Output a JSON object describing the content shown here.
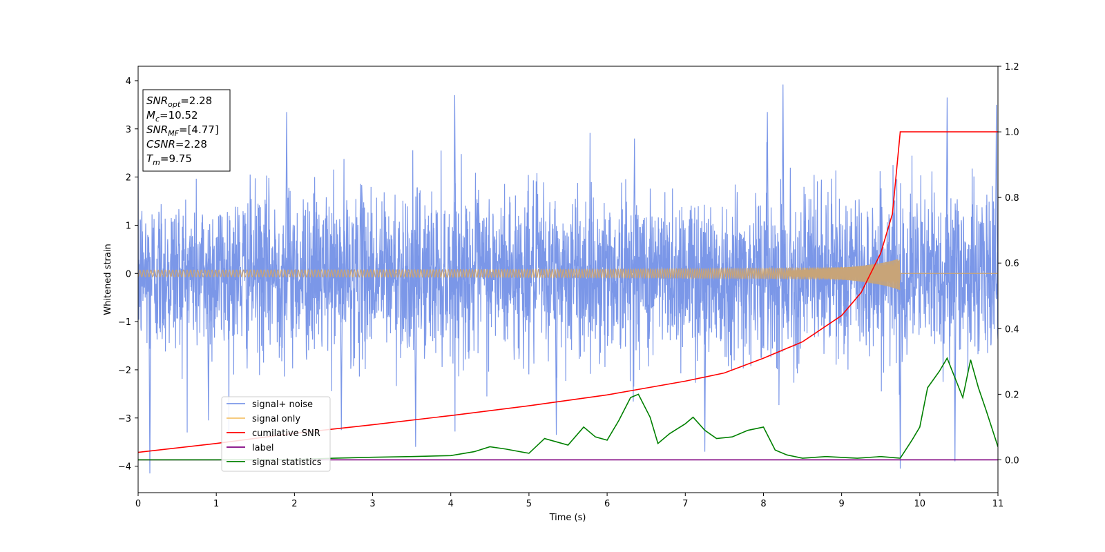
{
  "chart_data": {
    "type": "line",
    "xlabel": "Time (s)",
    "ylabel": "Whitened strain",
    "xlim": [
      0,
      11
    ],
    "ylim": [
      -4.55,
      4.3
    ],
    "y2lim": [
      -0.1,
      1.2
    ],
    "xticks": [
      "0",
      "1",
      "2",
      "3",
      "4",
      "5",
      "6",
      "7",
      "8",
      "9",
      "10",
      "11"
    ],
    "yticks": [
      "4",
      "3",
      "2",
      "1",
      "0",
      "−1",
      "−2",
      "−3",
      "−4"
    ],
    "y2ticks": [
      "1.2",
      "1.0",
      "0.8",
      "0.6",
      "0.4",
      "0.2",
      "0.0"
    ],
    "grid": false,
    "legend_position": "lower-left",
    "series": [
      {
        "name": "signal+ noise",
        "axis": "left",
        "color": "#7b97e8",
        "style": "dense noise",
        "typical_range": [
          -1.6,
          1.6
        ],
        "spike_peaks": [
          [
            0.15,
            -4.15
          ],
          [
            0.9,
            -3.05
          ],
          [
            1.9,
            3.35
          ],
          [
            2.6,
            -3.25
          ],
          [
            3.55,
            -3.6
          ],
          [
            4.05,
            3.7
          ],
          [
            5.35,
            -3.35
          ],
          [
            6.35,
            2.8
          ],
          [
            7.25,
            -3.7
          ],
          [
            8.05,
            3.35
          ],
          [
            8.25,
            3.92
          ],
          [
            9.75,
            -4.05
          ],
          [
            10.35,
            3.65
          ],
          [
            10.45,
            -3.9
          ],
          [
            10.98,
            3.5
          ]
        ]
      },
      {
        "name": "signal only",
        "axis": "left",
        "color": "#f5c26b",
        "style": "chirp",
        "merger_time": 9.75,
        "peak_amplitude": 0.33
      },
      {
        "name": "cumilative SNR",
        "axis": "right",
        "color": "#ff0000",
        "x": [
          0,
          1,
          2,
          3,
          4,
          5,
          6,
          7,
          7.5,
          8,
          8.5,
          9,
          9.25,
          9.5,
          9.65,
          9.75,
          11
        ],
        "values": [
          0.023,
          0.05,
          0.081,
          0.107,
          0.135,
          0.165,
          0.198,
          0.24,
          0.265,
          0.31,
          0.36,
          0.44,
          0.51,
          0.63,
          0.75,
          1.0,
          1.0
        ]
      },
      {
        "name": "label",
        "axis": "right",
        "color": "#800080",
        "x": [
          0,
          11
        ],
        "values": [
          0.0,
          0.0
        ]
      },
      {
        "name": "signal statistics",
        "axis": "right",
        "color": "#008000",
        "x": [
          0,
          1,
          2,
          2.5,
          3,
          3.5,
          4,
          4.3,
          4.5,
          4.7,
          5,
          5.2,
          5.5,
          5.7,
          5.85,
          6.0,
          6.15,
          6.3,
          6.4,
          6.55,
          6.65,
          6.8,
          7.0,
          7.1,
          7.25,
          7.4,
          7.6,
          7.8,
          8.0,
          8.15,
          8.3,
          8.5,
          8.8,
          9.2,
          9.5,
          9.75,
          9.9,
          10.0,
          10.1,
          10.25,
          10.35,
          10.45,
          10.55,
          10.65,
          10.75,
          10.85,
          11
        ],
        "values": [
          0.0,
          0.0,
          0.001,
          0.005,
          0.008,
          0.01,
          0.013,
          0.025,
          0.04,
          0.033,
          0.02,
          0.065,
          0.045,
          0.1,
          0.07,
          0.06,
          0.12,
          0.19,
          0.2,
          0.13,
          0.05,
          0.08,
          0.11,
          0.13,
          0.09,
          0.065,
          0.07,
          0.09,
          0.1,
          0.03,
          0.015,
          0.005,
          0.01,
          0.005,
          0.01,
          0.005,
          0.06,
          0.1,
          0.22,
          0.27,
          0.31,
          0.25,
          0.19,
          0.305,
          0.22,
          0.15,
          0.04
        ]
      }
    ],
    "annotation": [
      {
        "main": "SNR",
        "sub": "opt",
        "rest": "=2.28"
      },
      {
        "main": "M",
        "sub": "c",
        "rest": "=10.52"
      },
      {
        "main": "SNR",
        "sub": "MF",
        "rest": "=[4.77]"
      },
      {
        "main": "CSNR",
        "sub": "",
        "rest": "=2.28"
      },
      {
        "main": "T",
        "sub": "m",
        "rest": "=9.75"
      }
    ]
  }
}
